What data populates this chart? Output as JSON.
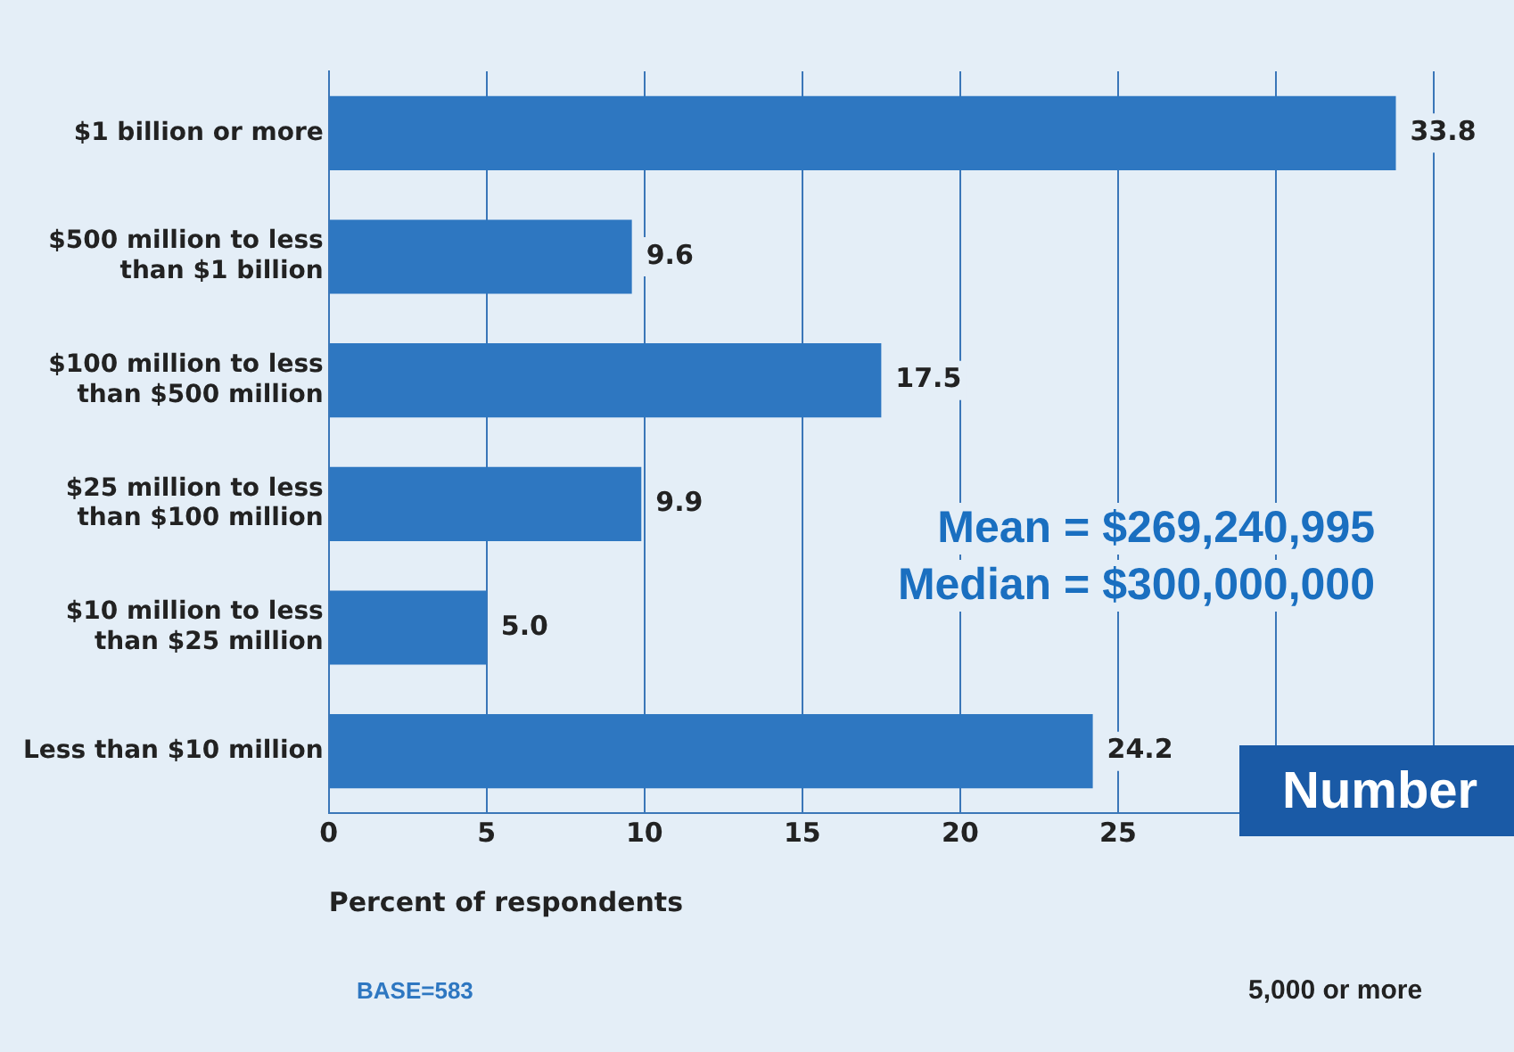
{
  "chart_data": {
    "type": "bar",
    "orientation": "horizontal",
    "categories": [
      "$1 billion or more",
      "$500 million to less than $1 billion",
      "$100 million to less than $500 million",
      "$25 million to less than $100 million",
      "$10 million to less than $25 million",
      "Less than $10 million"
    ],
    "values": [
      33.8,
      9.6,
      17.5,
      9.9,
      5.0,
      24.2
    ],
    "value_labels": [
      "33.8",
      "9.6",
      "17.5",
      "9.9",
      "5.0",
      "24.2"
    ],
    "color": "#2e77c1",
    "xlim": [
      0,
      35
    ],
    "xticks": [
      0,
      5,
      10,
      15,
      20,
      25,
      {
        "value": 30,
        "label": null
      },
      {
        "value": 35,
        "label": null
      }
    ],
    "grid": "x",
    "legend": false,
    "xlabel": "Percent of respondents",
    "annotations": [
      "Mean = $269,240,995",
      "Median = $300,000,000",
      "BASE=583",
      "Number",
      "5,000 or more"
    ]
  }
}
